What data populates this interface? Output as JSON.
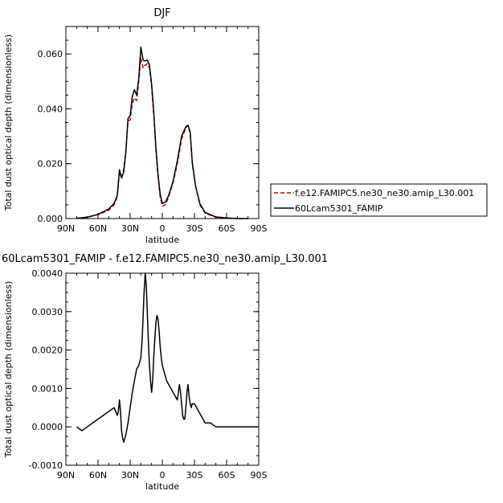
{
  "chart_data": [
    {
      "type": "line",
      "title": "DJF",
      "xlabel": "latitude",
      "ylabel": "Total dust optical depth (dimensionless)",
      "x_direction": "90N on left to 90S on right (positive = north)",
      "xlim": [
        90,
        -90
      ],
      "ylim": [
        0,
        0.07
      ],
      "xticks": [
        90,
        60,
        30,
        0,
        -30,
        -60,
        -90
      ],
      "xtick_labels": [
        "90N",
        "60N",
        "30N",
        "0",
        "30S",
        "60S",
        "90S"
      ],
      "yticks": [
        0,
        0.02,
        0.04,
        0.06
      ],
      "ytick_labels": [
        "0.000",
        "0.020",
        "0.040",
        "0.060"
      ],
      "grid": false,
      "legend_position": "right, outside plot",
      "series": [
        {
          "name": "f.e12.FAMIPC5.ne30_ne30.amip_L30.001",
          "color": "#cc0000",
          "style": "dashed",
          "x": [
            80,
            70,
            60,
            50,
            45,
            42,
            40,
            38,
            36,
            34,
            32,
            30,
            28,
            26,
            24,
            22,
            20,
            18,
            17,
            16,
            14,
            12,
            10,
            8,
            6,
            4,
            2,
            0,
            -3,
            -6,
            -10,
            -14,
            -18,
            -22,
            -24,
            -26,
            -28,
            -31,
            -35,
            -40,
            -50,
            -60,
            -70,
            -80
          ],
          "y": [
            0.0001,
            0.0005,
            0.0015,
            0.003,
            0.005,
            0.008,
            0.0172,
            0.0145,
            0.018,
            0.025,
            0.0355,
            0.036,
            0.042,
            0.044,
            0.043,
            0.05,
            0.0585,
            0.055,
            0.056,
            0.0558,
            0.0565,
            0.055,
            0.048,
            0.038,
            0.025,
            0.015,
            0.008,
            0.0045,
            0.005,
            0.008,
            0.013,
            0.02,
            0.029,
            0.033,
            0.034,
            0.031,
            0.02,
            0.012,
            0.005,
            0.002,
            0.0005,
            0.0002,
            0.0,
            0.0
          ]
        },
        {
          "name": "60Lcam5301_FAMIP",
          "color": "#000000",
          "style": "solid",
          "x": [
            80,
            70,
            60,
            50,
            45,
            42,
            40,
            38,
            36,
            34,
            32,
            30,
            28,
            26,
            24,
            22,
            20,
            18,
            17,
            16,
            14,
            12,
            10,
            8,
            6,
            4,
            2,
            0,
            -3,
            -6,
            -10,
            -14,
            -18,
            -22,
            -24,
            -26,
            -28,
            -31,
            -35,
            -40,
            -50,
            -60,
            -70,
            -80
          ],
          "y": [
            0.0001,
            0.0005,
            0.0015,
            0.0035,
            0.0055,
            0.0085,
            0.0178,
            0.0148,
            0.017,
            0.0245,
            0.0365,
            0.0375,
            0.0445,
            0.047,
            0.045,
            0.051,
            0.0625,
            0.058,
            0.0575,
            0.0575,
            0.0578,
            0.056,
            0.049,
            0.039,
            0.026,
            0.016,
            0.009,
            0.0055,
            0.006,
            0.0085,
            0.0135,
            0.021,
            0.03,
            0.0335,
            0.034,
            0.0315,
            0.0205,
            0.012,
            0.0055,
            0.0022,
            0.0006,
            0.0002,
            0.0,
            0.0
          ]
        }
      ]
    },
    {
      "type": "line",
      "title": "60Lcam5301_FAMIP - f.e12.FAMIPC5.ne30_ne30.amip_L30.001",
      "xlabel": "latitude",
      "ylabel": "Total dust optical depth (dimensionless)",
      "x_direction": "90N on left to 90S on right (positive = north)",
      "xlim": [
        90,
        -90
      ],
      "ylim": [
        -0.001,
        0.004
      ],
      "xticks": [
        90,
        60,
        30,
        0,
        -30,
        -60,
        -90
      ],
      "xtick_labels": [
        "90N",
        "60N",
        "30N",
        "0",
        "30S",
        "60S",
        "90S"
      ],
      "yticks": [
        -0.001,
        0,
        0.001,
        0.002,
        0.003,
        0.004
      ],
      "ytick_labels": [
        "-0.0010",
        "0.0000",
        "0.0010",
        "0.0020",
        "0.0030",
        "0.0040"
      ],
      "grid": false,
      "series": [
        {
          "name": "",
          "color": "#000000",
          "style": "solid",
          "x": [
            80,
            75,
            70,
            65,
            60,
            55,
            50,
            45,
            42,
            41,
            40,
            39,
            38,
            37,
            36,
            34,
            32,
            30,
            28,
            26,
            24,
            22,
            20,
            19,
            18,
            17,
            16,
            15,
            14,
            13,
            12,
            11,
            10,
            9,
            8,
            7,
            6,
            5,
            4,
            3,
            2,
            1,
            0,
            -1,
            -2,
            -3,
            -4,
            -6,
            -8,
            -10,
            -12,
            -14,
            -15,
            -16,
            -17,
            -18,
            -19,
            -20,
            -21,
            -22,
            -23,
            -24,
            -25,
            -26,
            -27,
            -28,
            -30,
            -32,
            -34,
            -36,
            -38,
            -40,
            -45,
            -50,
            -60,
            -70,
            -80,
            -90
          ],
          "y": [
            0.0,
            -0.0001,
            0.0,
            0.0001,
            0.0002,
            0.0003,
            0.0004,
            0.0005,
            0.0003,
            0.0004,
            0.0007,
            0.0004,
            -0.0001,
            -0.0003,
            -0.0004,
            -0.0002,
            0.0001,
            0.0005,
            0.0009,
            0.0012,
            0.0015,
            0.0016,
            0.0018,
            0.0022,
            0.0028,
            0.0035,
            0.004,
            0.0037,
            0.003,
            0.0022,
            0.0016,
            0.0012,
            0.0009,
            0.0012,
            0.0018,
            0.0023,
            0.0027,
            0.0029,
            0.0028,
            0.0025,
            0.0021,
            0.0018,
            0.0016,
            0.0015,
            0.0014,
            0.0013,
            0.0012,
            0.0011,
            0.001,
            0.0009,
            0.0008,
            0.0007,
            0.0009,
            0.0011,
            0.0009,
            0.0006,
            0.0003,
            0.0002,
            0.0002,
            0.0005,
            0.0009,
            0.0011,
            0.0008,
            0.0006,
            0.0005,
            0.0006,
            0.0006,
            0.0005,
            0.0004,
            0.0003,
            0.0002,
            0.0001,
            0.0001,
            0.0,
            0.0,
            0.0,
            0.0,
            0.0
          ]
        }
      ]
    }
  ]
}
